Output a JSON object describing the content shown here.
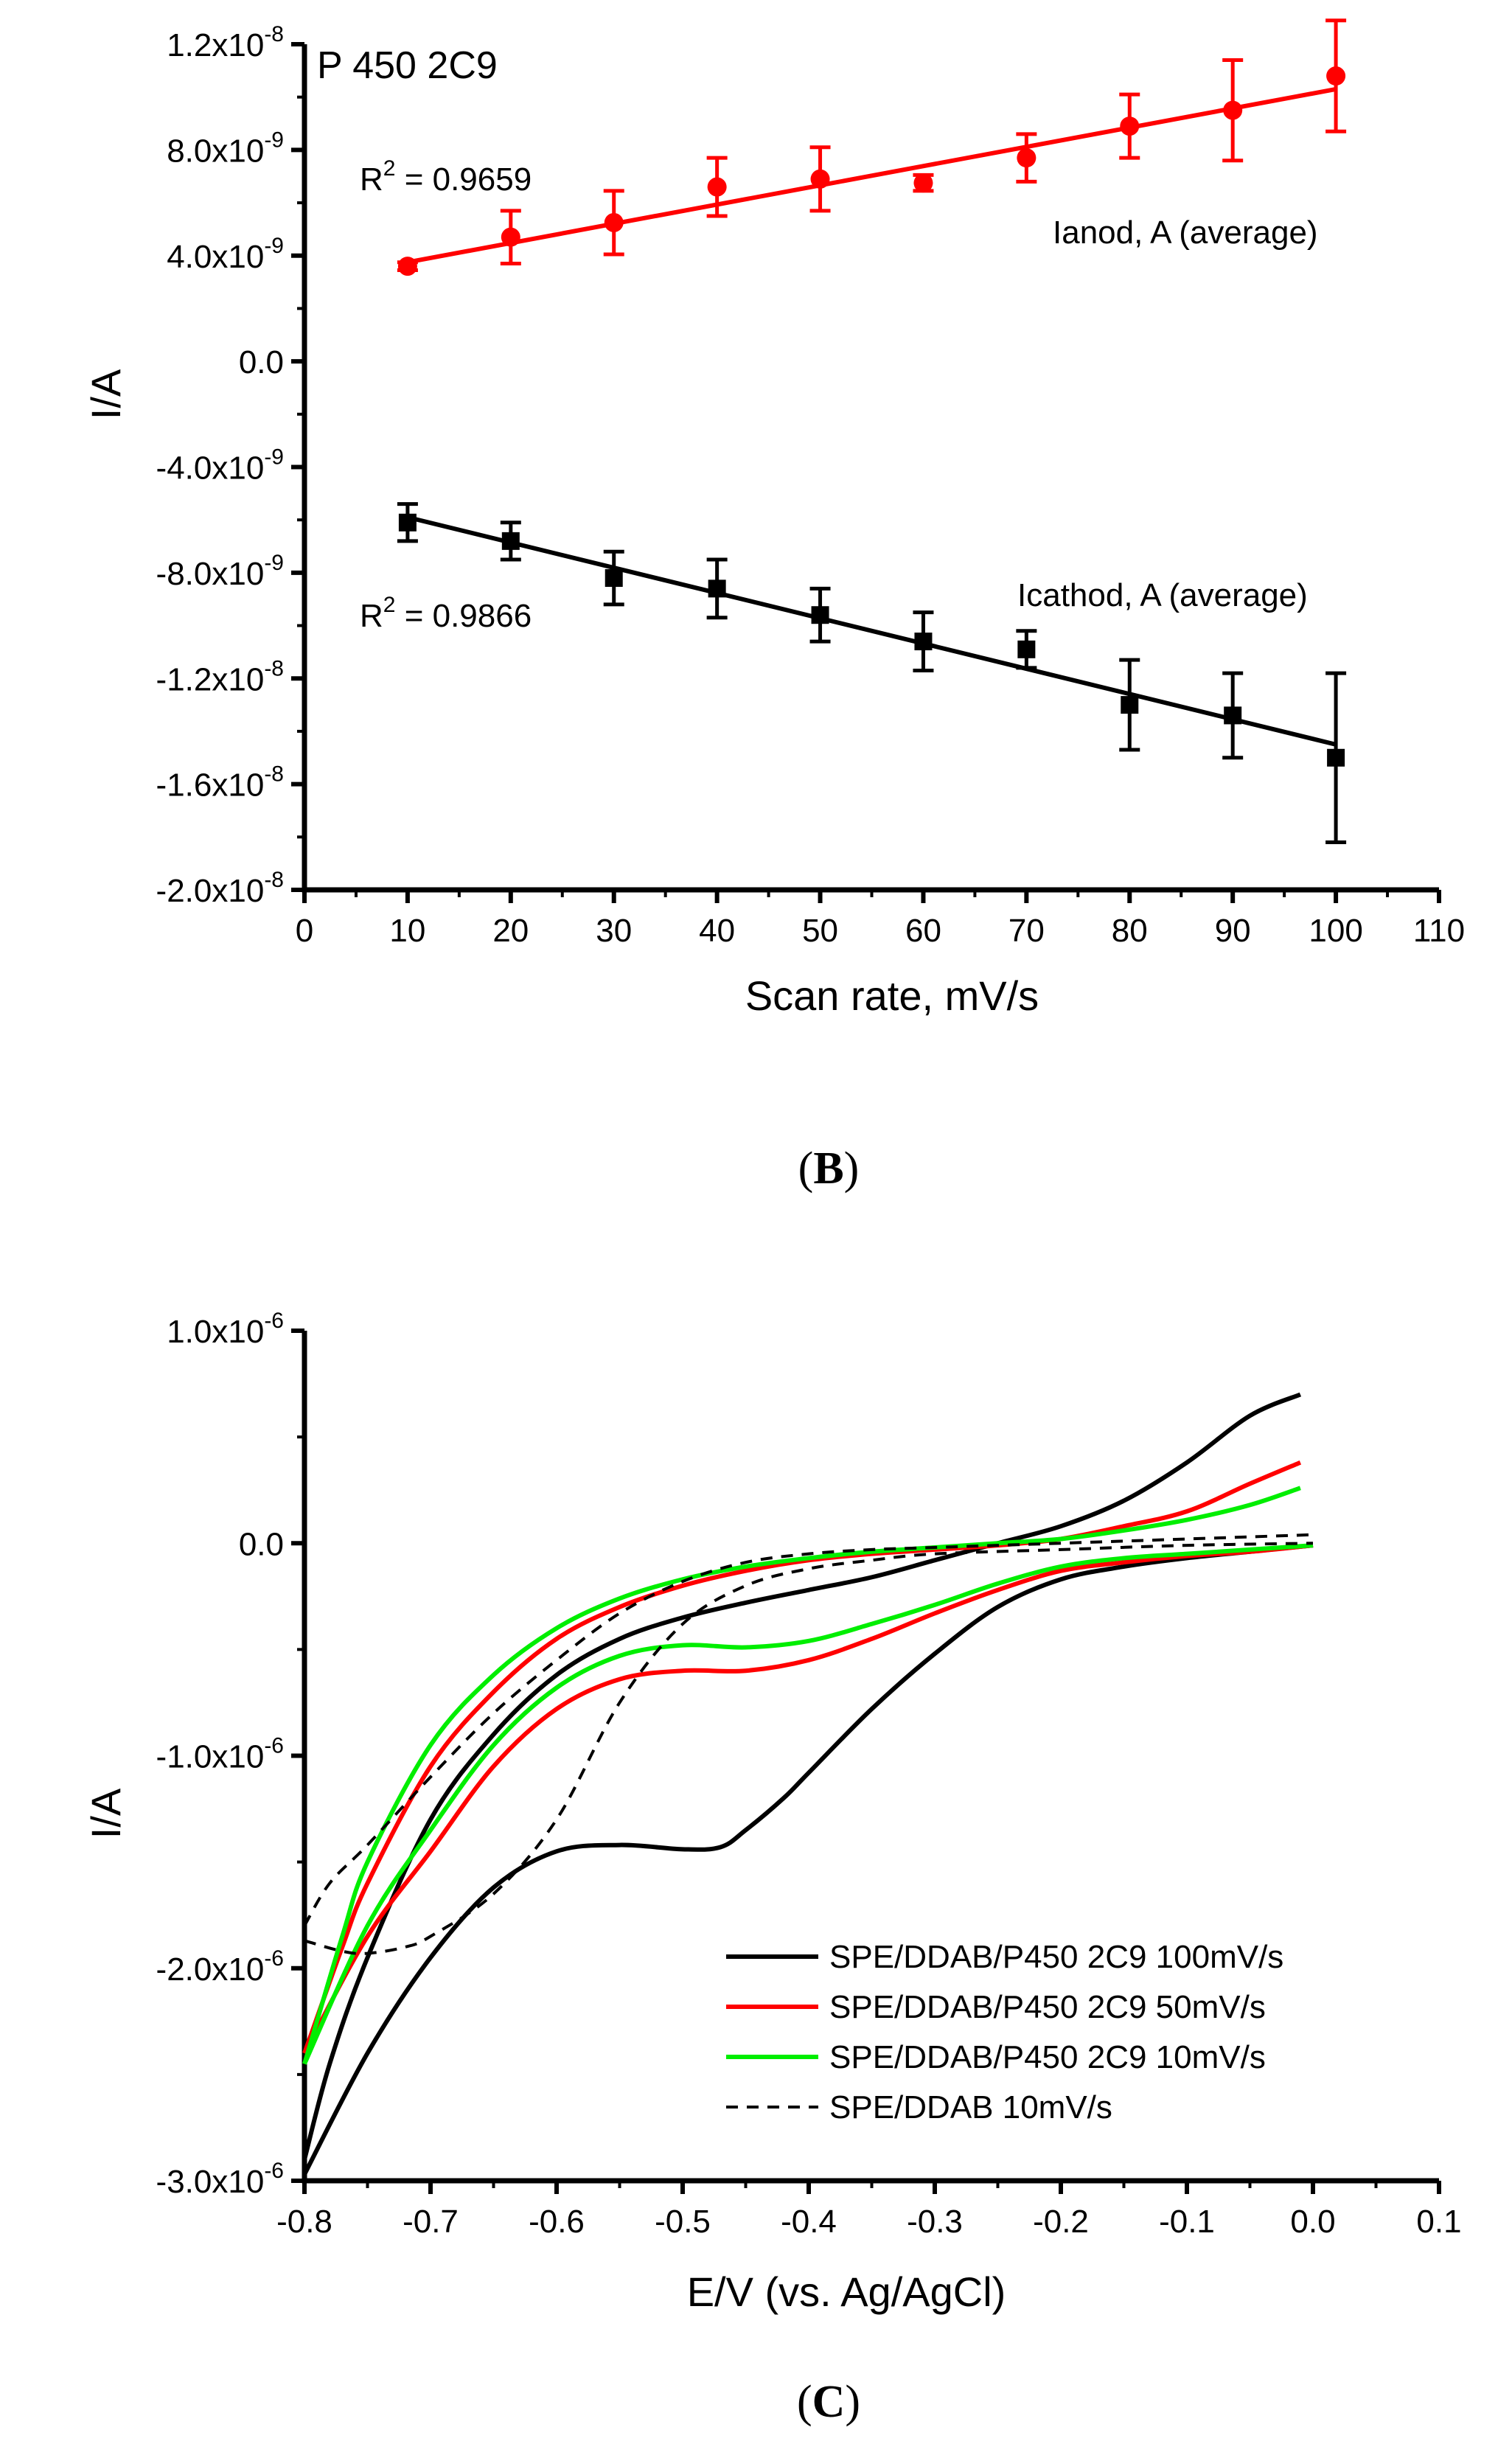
{
  "chart_data": [
    {
      "id": "B",
      "type": "scatter",
      "panel_label_open": "(",
      "panel_label_letter": "B",
      "panel_label_close": ")",
      "title": "P 450 2C9",
      "xlabel": "Scan rate, mV/s",
      "ylabel": "I/A",
      "xlim": [
        0,
        110
      ],
      "ylim": [
        -2e-08,
        1.2e-08
      ],
      "xticks": [
        "0",
        "10",
        "20",
        "30",
        "40",
        "50",
        "60",
        "70",
        "80",
        "90",
        "100",
        "110"
      ],
      "xtick_values": [
        0,
        10,
        20,
        30,
        40,
        50,
        60,
        70,
        80,
        90,
        100,
        110
      ],
      "yticks": [
        {
          "value": 1.2e-08,
          "mant": "1.2x10",
          "exp": "-8"
        },
        {
          "value": 8e-09,
          "mant": "8.0x10",
          "exp": "-9"
        },
        {
          "value": 4e-09,
          "mant": "4.0x10",
          "exp": "-9"
        },
        {
          "value": 0.0,
          "mant": "0.0",
          "exp": ""
        },
        {
          "value": -4e-09,
          "mant": "-4.0x10",
          "exp": "-9"
        },
        {
          "value": -8e-09,
          "mant": "-8.0x10",
          "exp": "-9"
        },
        {
          "value": -1.2e-08,
          "mant": "-1.2x10",
          "exp": "-8"
        },
        {
          "value": -1.6e-08,
          "mant": "-1.6x10",
          "exp": "-8"
        },
        {
          "value": -2e-08,
          "mant": "-2.0x10",
          "exp": "-8"
        }
      ],
      "series": [
        {
          "name": "Ianod, A (average)",
          "color": "#ff0000",
          "marker": "circle",
          "r2_prefix": "R",
          "r2_sup": "2",
          "r2_value": " = 0.9659",
          "x": [
            10,
            20,
            30,
            40,
            50,
            60,
            70,
            80,
            90,
            100
          ],
          "y": [
            3.6e-09,
            4.7e-09,
            5.25e-09,
            6.6e-09,
            6.9e-09,
            6.75e-09,
            7.7e-09,
            8.9e-09,
            9.5e-09,
            1.08e-08
          ],
          "yerr": [
            1.5e-10,
            1e-09,
            1.2e-09,
            1.1e-09,
            1.2e-09,
            3e-10,
            9e-10,
            1.2e-09,
            1.9e-09,
            2.1e-09
          ],
          "fit": {
            "x": [
              10,
              100
            ],
            "y": [
              3.75e-09,
              1.03e-08
            ]
          }
        },
        {
          "name": "Icathod, A (average)",
          "color": "#000000",
          "marker": "square",
          "r2_prefix": "R",
          "r2_sup": "2",
          "r2_value": " = 0.9866",
          "x": [
            10,
            20,
            30,
            40,
            50,
            60,
            70,
            80,
            90,
            100
          ],
          "y": [
            -6.1e-09,
            -6.8e-09,
            -8.2e-09,
            -8.6e-09,
            -9.6e-09,
            -1.06e-08,
            -1.09e-08,
            -1.3e-08,
            -1.34e-08,
            -1.5e-08
          ],
          "yerr": [
            7e-10,
            7e-10,
            1e-09,
            1.1e-09,
            1e-09,
            1.1e-09,
            7e-10,
            1.7e-09,
            1.6e-09,
            3.2e-09
          ],
          "fit": {
            "x": [
              10,
              100
            ],
            "y": [
              -5.9e-09,
              -1.45e-08
            ]
          }
        }
      ]
    },
    {
      "id": "C",
      "type": "line",
      "panel_label_open": "(",
      "panel_label_letter": "C",
      "panel_label_close": ")",
      "xlabel": "E/V (vs. Ag/AgCl)",
      "ylabel": "I/A",
      "xlim": [
        -0.8,
        0.1
      ],
      "ylim": [
        -3e-06,
        1e-06
      ],
      "xticks": [
        "-0.8",
        "-0.7",
        "-0.6",
        "-0.5",
        "-0.4",
        "-0.3",
        "-0.2",
        "-0.1",
        "0.0",
        "0.1"
      ],
      "xtick_values": [
        -0.8,
        -0.7,
        -0.6,
        -0.5,
        -0.4,
        -0.3,
        -0.2,
        -0.1,
        0.0,
        0.1
      ],
      "yticks": [
        {
          "value": 1e-06,
          "mant": "1.0x10",
          "exp": "-6"
        },
        {
          "value": 0.0,
          "mant": "0.0",
          "exp": ""
        },
        {
          "value": -1e-06,
          "mant": "-1.0x10",
          "exp": "-6"
        },
        {
          "value": -2e-06,
          "mant": "-2.0x10",
          "exp": "-6"
        },
        {
          "value": -3e-06,
          "mant": "-3.0x10",
          "exp": "-6"
        }
      ],
      "legend_position": "bottom-right",
      "series": [
        {
          "name": "SPE/DDAB/P450 2C9 100mV/s",
          "color": "#000000",
          "dash": "solid",
          "upper": {
            "x": [
              -0.8,
              -0.78,
              -0.75,
              -0.7,
              -0.65,
              -0.6,
              -0.55,
              -0.5,
              -0.45,
              -0.4,
              -0.35,
              -0.3,
              -0.25,
              -0.2,
              -0.15,
              -0.1,
              -0.05,
              -0.01
            ],
            "y": [
              -2.9e-06,
              -2.45e-06,
              -1.95e-06,
              -1.3e-06,
              -9e-07,
              -6.2e-07,
              -4.5e-07,
              -3.5e-07,
              -2.8e-07,
              -2.2e-07,
              -1.6e-07,
              -8e-08,
              0.0,
              8e-08,
              2e-07,
              3.8e-07,
              6e-07,
              7e-07
            ]
          },
          "lower": {
            "x": [
              -0.8,
              -0.75,
              -0.7,
              -0.65,
              -0.6,
              -0.55,
              -0.5,
              -0.47,
              -0.45,
              -0.42,
              -0.4,
              -0.35,
              -0.3,
              -0.25,
              -0.2,
              -0.15,
              -0.1,
              -0.05,
              0.0
            ],
            "y": [
              -2.97e-06,
              -2.4e-06,
              -1.95e-06,
              -1.62e-06,
              -1.45e-06,
              -1.42e-06,
              -1.44e-06,
              -1.43e-06,
              -1.35e-06,
              -1.2e-06,
              -1.08e-06,
              -7.8e-07,
              -5.2e-07,
              -3e-07,
              -1.7e-07,
              -1.1e-07,
              -7e-08,
              -4e-08,
              -1e-08
            ]
          }
        },
        {
          "name": "SPE/DDAB/P450 2C9 50mV/s",
          "color": "#ff0000",
          "dash": "solid",
          "upper": {
            "x": [
              -0.8,
              -0.77,
              -0.75,
              -0.7,
              -0.65,
              -0.6,
              -0.55,
              -0.5,
              -0.45,
              -0.4,
              -0.35,
              -0.3,
              -0.25,
              -0.2,
              -0.15,
              -0.1,
              -0.05,
              -0.01
            ],
            "y": [
              -2.4e-06,
              -1.9e-06,
              -1.6e-06,
              -1.05e-06,
              -7e-07,
              -4.5e-07,
              -3e-07,
              -2e-07,
              -1.3e-07,
              -8e-08,
              -5e-08,
              -3e-08,
              -1e-08,
              2e-08,
              8e-08,
              1.5e-07,
              2.8e-07,
              3.8e-07
            ]
          },
          "lower": {
            "x": [
              -0.8,
              -0.75,
              -0.7,
              -0.65,
              -0.6,
              -0.55,
              -0.5,
              -0.45,
              -0.4,
              -0.35,
              -0.3,
              -0.25,
              -0.2,
              -0.15,
              -0.1,
              -0.05,
              0.0
            ],
            "y": [
              -2.4e-06,
              -1.85e-06,
              -1.45e-06,
              -1.05e-06,
              -7.8e-07,
              -6.4e-07,
              -6e-07,
              -6e-07,
              -5.5e-07,
              -4.5e-07,
              -3.3e-07,
              -2.2e-07,
              -1.3e-07,
              -9e-08,
              -6e-08,
              -4e-08,
              -1e-08
            ]
          }
        },
        {
          "name": "SPE/DDAB/P450 2C9 10mV/s",
          "color": "#00ee00",
          "dash": "solid",
          "upper": {
            "x": [
              -0.8,
              -0.77,
              -0.75,
              -0.7,
              -0.65,
              -0.6,
              -0.55,
              -0.5,
              -0.45,
              -0.4,
              -0.35,
              -0.3,
              -0.25,
              -0.2,
              -0.15,
              -0.1,
              -0.05,
              -0.01
            ],
            "y": [
              -2.45e-06,
              -1.85e-06,
              -1.5e-06,
              -9.5e-07,
              -6.2e-07,
              -4e-07,
              -2.6e-07,
              -1.7e-07,
              -1.1e-07,
              -7e-08,
              -4e-08,
              -2e-08,
              0.0,
              2e-08,
              6e-08,
              1.1e-07,
              1.8e-07,
              2.6e-07
            ]
          },
          "lower": {
            "x": [
              -0.8,
              -0.75,
              -0.7,
              -0.65,
              -0.6,
              -0.55,
              -0.5,
              -0.45,
              -0.4,
              -0.35,
              -0.3,
              -0.25,
              -0.2,
              -0.15,
              -0.1,
              -0.05,
              0.0
            ],
            "y": [
              -2.45e-06,
              -1.8e-06,
              -1.35e-06,
              -9.5e-07,
              -6.8e-07,
              -5.3e-07,
              -4.8e-07,
              -4.9e-07,
              -4.6e-07,
              -3.8e-07,
              -2.9e-07,
              -1.9e-07,
              -1.1e-07,
              -7e-08,
              -5e-08,
              -3e-08,
              -1e-08
            ]
          }
        },
        {
          "name": "SPE/DDAB 10mV/s",
          "color": "#000000",
          "dash": "dashed",
          "upper": {
            "x": [
              -0.8,
              -0.78,
              -0.75,
              -0.7,
              -0.65,
              -0.6,
              -0.55,
              -0.5,
              -0.45,
              -0.4,
              -0.35,
              -0.3,
              -0.25,
              -0.2,
              -0.15,
              -0.1,
              -0.05,
              0.0
            ],
            "y": [
              -1.8e-06,
              -1.6e-06,
              -1.42e-06,
              -1.1e-06,
              -8e-07,
              -5.5e-07,
              -3.3e-07,
              -1.8e-07,
              -9e-08,
              -5e-08,
              -3e-08,
              -2e-08,
              -1e-08,
              0.0,
              1e-08,
              2e-08,
              3e-08,
              4e-08
            ]
          },
          "lower": {
            "x": [
              -0.8,
              -0.77,
              -0.75,
              -0.72,
              -0.7,
              -0.65,
              -0.6,
              -0.55,
              -0.5,
              -0.45,
              -0.4,
              -0.35,
              -0.3,
              -0.2,
              -0.1,
              0.0
            ],
            "y": [
              -1.87e-06,
              -1.92e-06,
              -1.93e-06,
              -1.9e-06,
              -1.85e-06,
              -1.65e-06,
              -1.3e-06,
              -7.5e-07,
              -3.8e-07,
              -2e-07,
              -1.2e-07,
              -8e-08,
              -5e-08,
              -3e-08,
              -1e-08,
              0.0
            ]
          }
        }
      ]
    }
  ]
}
